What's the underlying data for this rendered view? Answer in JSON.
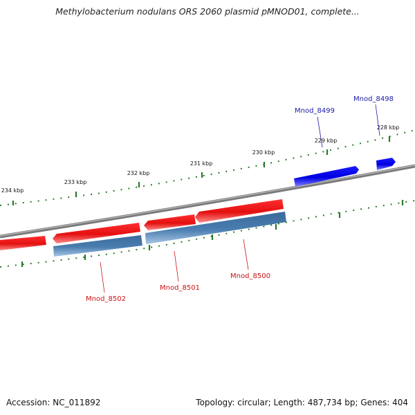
{
  "title": "Methylobacterium nodulans ORS 2060 plasmid pMNOD01, complete...",
  "footer": {
    "accession": "Accession: NC_011892",
    "summary": "Topology: circular; Length: 487,734 bp; Genes: 404"
  },
  "ticks": [
    "234 kbp",
    "233 kbp",
    "232 kbp",
    "231 kbp",
    "230 kbp",
    "229 kbp",
    "228 kbp"
  ],
  "genes": [
    {
      "name": "Mnod_8499",
      "color": "#1a1aa8"
    },
    {
      "name": "Mnod_8498",
      "color": "#1a1aa8"
    },
    {
      "name": "Mnod_8502",
      "color": "#cc1111"
    },
    {
      "name": "Mnod_8501",
      "color": "#cc1111"
    },
    {
      "name": "Mnod_8500",
      "color": "#cc1111"
    }
  ],
  "colors": {
    "forward_gene": "#0000ee",
    "reverse_gene": "#ee1111",
    "cds": "#4a7db0",
    "backbone": "#808080",
    "tick": "#2a7a2a"
  }
}
